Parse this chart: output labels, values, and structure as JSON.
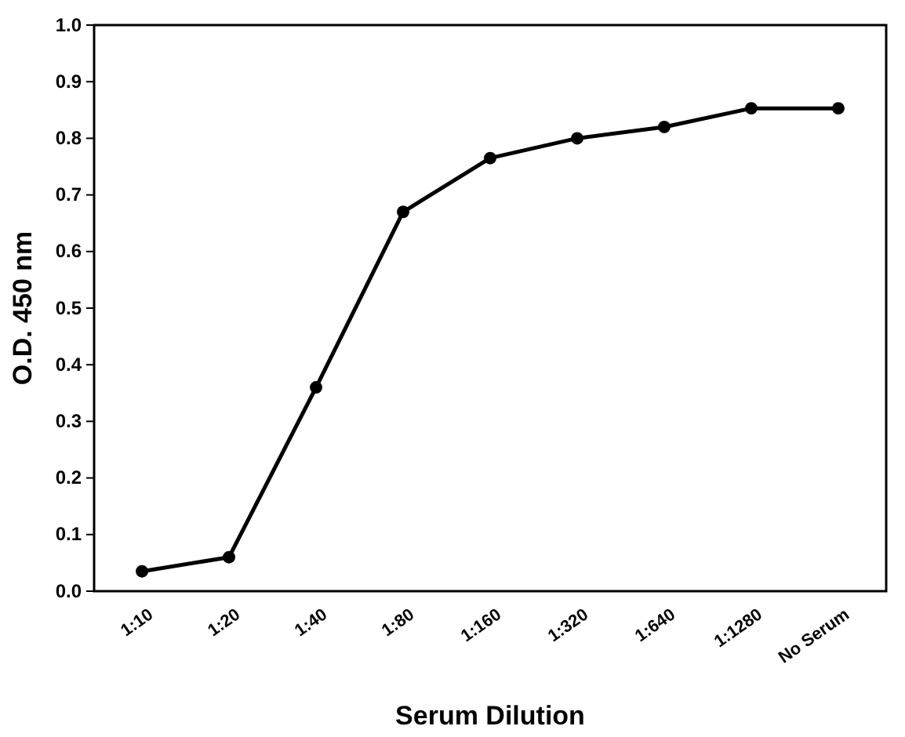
{
  "chart_data": {
    "type": "line",
    "xlabel": "Serum Dilution",
    "ylabel": "O.D. 450 nm",
    "categories": [
      "1:10",
      "1:20",
      "1:40",
      "1:80",
      "1:160",
      "1:320",
      "1:640",
      "1:1280",
      "No Serum"
    ],
    "series": [
      {
        "color": "#000000",
        "values": [
          0.035,
          0.06,
          0.36,
          0.67,
          0.765,
          0.8,
          0.82,
          0.853,
          0.853
        ]
      }
    ],
    "ylim": [
      0,
      1
    ],
    "yticks": [
      {
        "value": 0,
        "label": "0.0"
      },
      {
        "value": 0.1,
        "label": "0.1"
      },
      {
        "value": 0.2,
        "label": "0.2"
      },
      {
        "value": 0.3,
        "label": "0.3"
      },
      {
        "value": 0.4,
        "label": "0.4"
      },
      {
        "value": 0.5,
        "label": "0.5"
      },
      {
        "value": 0.6,
        "label": "0.6"
      },
      {
        "value": 0.7,
        "label": "0.7"
      },
      {
        "value": 0.8,
        "label": "0.8"
      },
      {
        "value": 0.9,
        "label": "0.9"
      },
      {
        "value": 1,
        "label": "1.0"
      }
    ],
    "grid": false,
    "marker": "circle",
    "line_style": "solid"
  }
}
